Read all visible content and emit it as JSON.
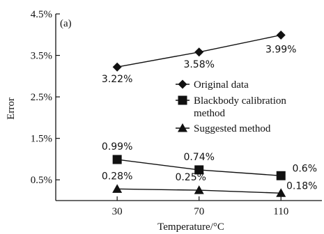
{
  "chart_data": {
    "type": "line",
    "panel_label": "(a)",
    "xlabel": "Temperature/°C",
    "ylabel": "Error",
    "categories": [
      "30",
      "70",
      "110"
    ],
    "x": [
      30,
      70,
      110
    ],
    "xlim": [
      0,
      130
    ],
    "ylim": [
      0,
      4.5
    ],
    "y_ticks": [
      0.5,
      1.5,
      2.5,
      3.5,
      4.5
    ],
    "y_tick_labels": [
      "0.5%",
      "1.5%",
      "2.5%",
      "3.5%",
      "4.5%"
    ],
    "grid": false,
    "legend_position": "right",
    "series": [
      {
        "name": "Original data",
        "legend_label": [
          "Original data"
        ],
        "marker": "diamond",
        "values": [
          3.22,
          3.58,
          3.99
        ],
        "labels": [
          "3.22%",
          "3.58%",
          "3.99%"
        ],
        "label_position": "below"
      },
      {
        "name": "Blackbody calibration method",
        "legend_label": [
          "Blackbody calibration",
          "method"
        ],
        "marker": "square",
        "values": [
          0.99,
          0.74,
          0.6
        ],
        "labels": [
          "0.99%",
          "0.74%",
          "0.6%"
        ],
        "label_position": "above"
      },
      {
        "name": "Suggested method",
        "legend_label": [
          "Suggested method"
        ],
        "marker": "triangle",
        "values": [
          0.28,
          0.25,
          0.18
        ],
        "labels": [
          "0.28%",
          "0.25%",
          "0.18%"
        ],
        "label_position": "above"
      }
    ]
  }
}
